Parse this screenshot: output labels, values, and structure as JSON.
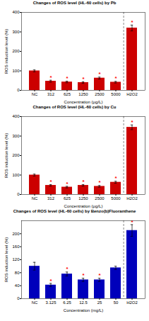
{
  "chart_data": [
    {
      "type": "bar",
      "title": "Changes of ROS level (HL-60 cells) by Pb",
      "xlabel": "Concentration (μg/L)",
      "ylabel": "ROS induction level (%)",
      "categories": [
        "NC",
        "312",
        "625",
        "1250",
        "2500",
        "5000",
        "H2O2"
      ],
      "values": [
        100,
        47,
        43,
        40,
        63,
        42,
        320
      ],
      "errors": [
        5,
        5,
        4,
        4,
        5,
        4,
        15
      ],
      "color": "#cc0000",
      "ylim": [
        0,
        400
      ],
      "yticks": [
        0,
        100,
        200,
        300,
        400
      ],
      "grid": false,
      "annotations": [
        {
          "text": "*",
          "category": "312",
          "color": "red"
        },
        {
          "text": "*",
          "category": "625",
          "color": "red"
        },
        {
          "text": "*",
          "category": "1250",
          "color": "red"
        },
        {
          "text": "*",
          "category": "2500",
          "color": "red"
        },
        {
          "text": "*",
          "category": "5000",
          "color": "red"
        },
        {
          "text": "*",
          "category": "H2O2",
          "color": "red"
        }
      ]
    },
    {
      "type": "bar",
      "title": "Changes of ROS level (HL-60 cells) by Cu",
      "xlabel": "Concentration (μg/L)",
      "ylabel": "ROS induction level (%)",
      "categories": [
        "NC",
        "312",
        "625",
        "1250",
        "2500",
        "5000",
        "H2O2"
      ],
      "values": [
        100,
        47,
        38,
        47,
        42,
        63,
        345
      ],
      "errors": [
        5,
        4,
        4,
        4,
        4,
        5,
        12
      ],
      "color": "#cc0000",
      "ylim": [
        0,
        400
      ],
      "yticks": [
        0,
        100,
        200,
        300,
        400
      ],
      "grid": false,
      "annotations": [
        {
          "text": "*",
          "category": "312",
          "color": "red"
        },
        {
          "text": "*",
          "category": "625",
          "color": "red"
        },
        {
          "text": "*",
          "category": "1250",
          "color": "red"
        },
        {
          "text": "*",
          "category": "2500",
          "color": "red"
        },
        {
          "text": "*",
          "category": "5000",
          "color": "red"
        },
        {
          "text": "*",
          "category": "H2O2",
          "color": "red"
        }
      ]
    },
    {
      "type": "bar",
      "title": "Changes of ROS level (HL-60 cells) by Benzo(b)Fluoranthene",
      "xlabel": "Concentration (mg/L)",
      "ylabel": "ROS induction level (%)",
      "categories": [
        "NC",
        "3.125",
        "6.25",
        "12.5",
        "25",
        "50",
        "H2O2"
      ],
      "values": [
        100,
        42,
        76,
        58,
        58,
        95,
        210
      ],
      "errors": [
        12,
        5,
        6,
        5,
        5,
        5,
        18
      ],
      "color": "#0000bb",
      "ylim": [
        0,
        240
      ],
      "yticks": [
        0,
        40,
        80,
        120,
        160,
        200
      ],
      "grid": false,
      "annotations": [
        {
          "text": "*",
          "category": "3.125",
          "color": "red"
        },
        {
          "text": "*",
          "category": "6.25",
          "color": "red"
        },
        {
          "text": "*",
          "category": "12.5",
          "color": "red"
        },
        {
          "text": "*",
          "category": "25",
          "color": "red"
        },
        {
          "text": "*",
          "category": "H2O2",
          "color": "red"
        }
      ]
    }
  ]
}
